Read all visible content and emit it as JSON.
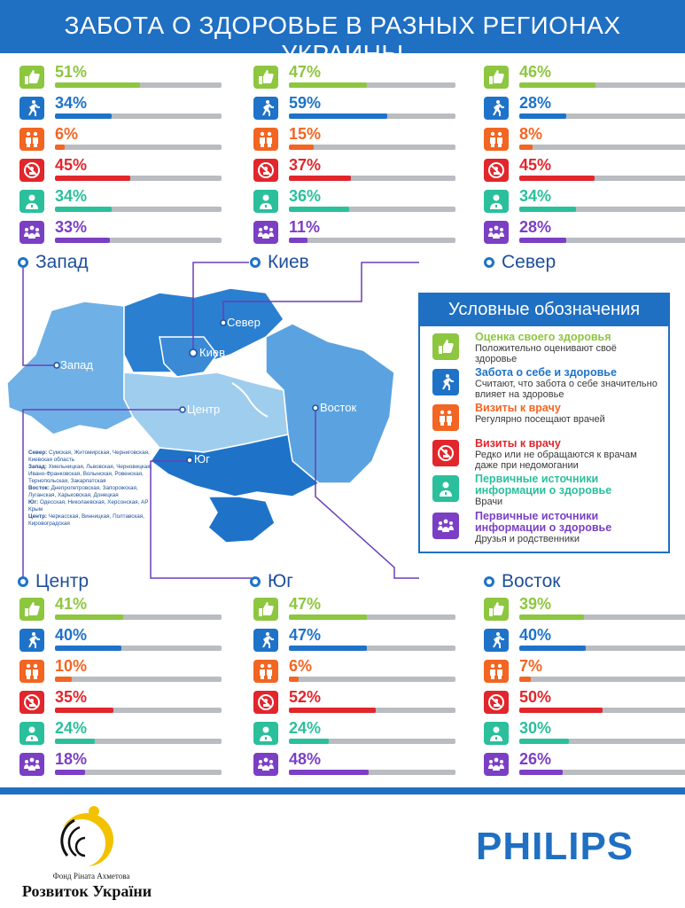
{
  "title": "ЗАБОТА О ЗДОРОВЬЕ В РАЗНЫХ РЕГИОНАХ УКРАИНЫ",
  "colors": {
    "self_assessment": "#8dc63f",
    "self_care": "#1e73c8",
    "visits_regular": "#f26522",
    "visits_rare": "#e1262c",
    "info_doctors": "#2bbf9c",
    "info_friends": "#7b3fc4",
    "accent": "#1f6fc2"
  },
  "regions": {
    "west": {
      "name": "Запад",
      "values": [
        "51%",
        "34%",
        "6%",
        "45%",
        "34%",
        "33%"
      ],
      "fractions": [
        0.51,
        0.34,
        0.06,
        0.45,
        0.34,
        0.33
      ]
    },
    "kiev": {
      "name": "Киев",
      "values": [
        "47%",
        "59%",
        "15%",
        "37%",
        "36%",
        "11%"
      ],
      "fractions": [
        0.47,
        0.59,
        0.15,
        0.37,
        0.36,
        0.11
      ]
    },
    "north": {
      "name": "Север",
      "values": [
        "46%",
        "28%",
        "8%",
        "45%",
        "34%",
        "28%"
      ],
      "fractions": [
        0.46,
        0.28,
        0.08,
        0.45,
        0.34,
        0.28
      ]
    },
    "center": {
      "name": "Центр",
      "values": [
        "41%",
        "40%",
        "10%",
        "35%",
        "24%",
        "18%"
      ],
      "fractions": [
        0.41,
        0.4,
        0.1,
        0.35,
        0.24,
        0.18
      ]
    },
    "south": {
      "name": "Юг",
      "values": [
        "47%",
        "47%",
        "6%",
        "52%",
        "24%",
        "48%"
      ],
      "fractions": [
        0.47,
        0.47,
        0.06,
        0.52,
        0.24,
        0.48
      ]
    },
    "east": {
      "name": "Восток",
      "values": [
        "39%",
        "40%",
        "7%",
        "50%",
        "30%",
        "26%"
      ],
      "fractions": [
        0.39,
        0.4,
        0.07,
        0.5,
        0.3,
        0.26
      ]
    }
  },
  "map_labels": {
    "north": "Север",
    "kiev": "Киев",
    "west": "Запад",
    "center": "Центр",
    "east": "Восток",
    "south": "Юг"
  },
  "legend": {
    "title": "Условные обозначения",
    "items": [
      {
        "icon": "thumbs-up-icon",
        "head": "Оценка своего здоровья",
        "desc": "Положительно оценивают своё здоровье"
      },
      {
        "icon": "runner-icon",
        "head": "Забота о себе и здоровье",
        "desc": "Считают, что забота о себе значительно влияет на здоровье"
      },
      {
        "icon": "doctor-visit-icon",
        "head": "Визиты к врачу",
        "desc": "Регулярно посещают врачей"
      },
      {
        "icon": "no-doctor-icon",
        "head": "Визиты к врачу",
        "desc": "Редко или не обращаются к врачам даже при недомогании"
      },
      {
        "icon": "doctor-icon",
        "head": "Первичные источники информации о здоровье",
        "desc": "Врачи"
      },
      {
        "icon": "friends-icon",
        "head": "Первичные источники информации о здоровье",
        "desc": "Друзья и родственники"
      }
    ]
  },
  "footnote": {
    "north_label": "Север:",
    "north_text": "Сумская, Житомирская, Черниговская, Киевская область",
    "west_label": "Запад:",
    "west_text": "Хмельницкая, Львовская, Черновицкая, Ивано-Франковская, Волынская, Ровенская, Тернопольская, Закарпатская",
    "east_label": "Восток:",
    "east_text": "Днепропетровская, Запорожская, Луганская, Харьковская, Донецкая",
    "south_label": "Юг:",
    "south_text": "Одесская, Николаевская, Херсонская, АР Крым",
    "center_label": "Центр:",
    "center_text": "Черкасская, Винницкая, Полтавская, Кировоградская"
  },
  "sponsors": {
    "fund_small": "Фонд Ріната Ахметова",
    "fund_big": "Розвиток України",
    "philips": "PHILIPS"
  }
}
